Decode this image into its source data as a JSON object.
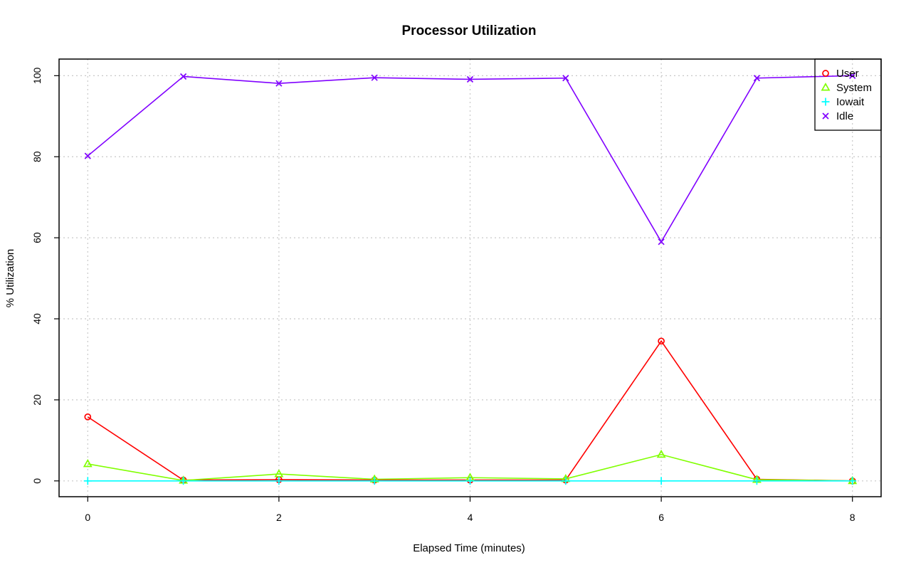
{
  "chart_data": {
    "type": "line",
    "title": "Processor Utilization",
    "xlabel": "Elapsed Time (minutes)",
    "ylabel": "% Utilization",
    "xlim": [
      -0.3,
      8.3
    ],
    "ylim": [
      -3.9,
      104.1
    ],
    "x_ticks": [
      "0",
      "2",
      "4",
      "6",
      "8"
    ],
    "y_ticks": [
      "0",
      "20",
      "40",
      "60",
      "80",
      "100"
    ],
    "grid": true,
    "legend_position": "top-right",
    "x": [
      0,
      1,
      2,
      3,
      4,
      5,
      6,
      7,
      8
    ],
    "series": [
      {
        "name": "User",
        "color": "#ff0000",
        "marker": "circle",
        "values": [
          15.8,
          0.2,
          0.3,
          0.2,
          0.2,
          0.2,
          34.5,
          0.4,
          0.0
        ]
      },
      {
        "name": "System",
        "color": "#80ff00",
        "marker": "triangle",
        "values": [
          4.2,
          0.1,
          1.7,
          0.4,
          0.8,
          0.5,
          6.5,
          0.3,
          0.0
        ]
      },
      {
        "name": "Iowait",
        "color": "#00ffff",
        "marker": "plus",
        "values": [
          0.0,
          0.0,
          0.0,
          0.0,
          0.0,
          0.0,
          0.0,
          0.0,
          0.0
        ]
      },
      {
        "name": "Idle",
        "color": "#8000ff",
        "marker": "cross",
        "values": [
          80.2,
          99.8,
          98.1,
          99.5,
          99.1,
          99.4,
          59.0,
          99.4,
          100.0
        ]
      }
    ]
  }
}
